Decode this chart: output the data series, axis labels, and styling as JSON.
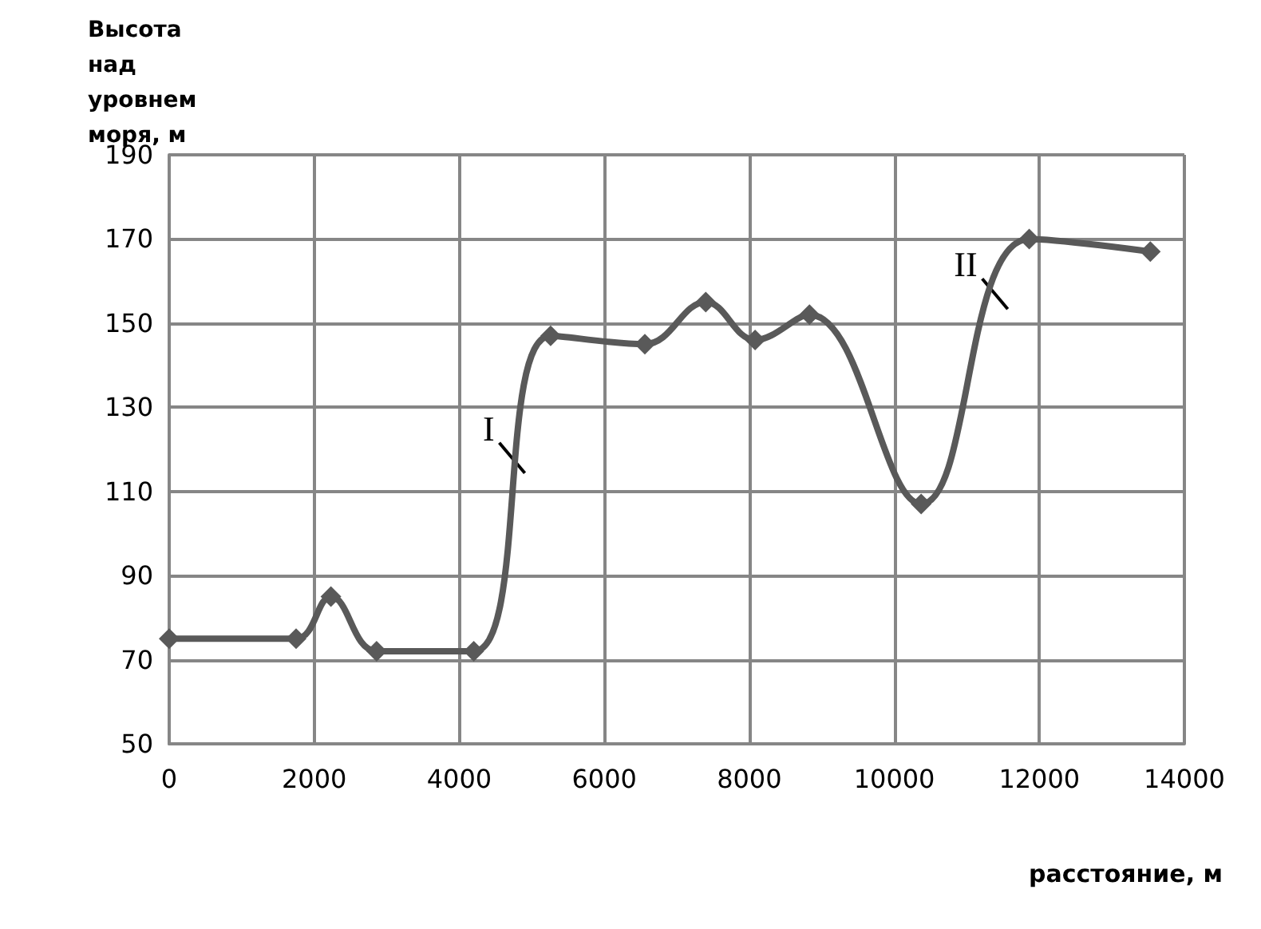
{
  "chart_data": {
    "type": "line",
    "ylabel": "Высота над уровнем моря, м",
    "xlabel": "расстояние, м",
    "x": [
      0,
      1750,
      2230,
      2860,
      4200,
      5260,
      6560,
      7400,
      8080,
      8830,
      10370,
      11860,
      13530
    ],
    "series": [
      {
        "color": "#595959",
        "values": [
          75,
          75,
          85,
          72,
          72,
          147,
          145,
          155,
          146,
          152,
          107,
          170,
          167
        ]
      }
    ],
    "xlim": [
      0,
      14000
    ],
    "xticks": [
      0,
      2000,
      4000,
      6000,
      8000,
      10000,
      12000,
      14000
    ],
    "ylim": [
      50,
      190
    ],
    "yticks": [
      50,
      70,
      90,
      110,
      130,
      150,
      170,
      190
    ],
    "grid": true,
    "marker": "diamond",
    "line_style": "solid",
    "annotations": [
      {
        "text": "I",
        "x": 4750,
        "y": 117
      },
      {
        "text": "II",
        "x": 11410,
        "y": 156
      }
    ]
  }
}
